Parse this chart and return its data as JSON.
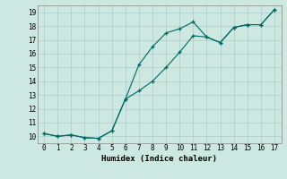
{
  "xlabel": "Humidex (Indice chaleur)",
  "ylabel": "",
  "background_color": "#cce8e0",
  "grid_color": "#aacccc",
  "line_color": "#006666",
  "xlim": [
    -0.5,
    17.5
  ],
  "ylim": [
    9.5,
    19.5
  ],
  "xticks": [
    0,
    1,
    2,
    3,
    4,
    5,
    6,
    7,
    8,
    9,
    10,
    11,
    12,
    13,
    14,
    15,
    16,
    17
  ],
  "yticks": [
    10,
    11,
    12,
    13,
    14,
    15,
    16,
    17,
    18,
    19
  ],
  "line1_x": [
    0,
    1,
    2,
    3,
    4,
    5,
    6,
    7,
    8,
    9,
    10,
    11,
    12,
    13,
    14,
    15,
    16,
    17
  ],
  "line1_y": [
    10.2,
    10.0,
    10.1,
    9.9,
    9.85,
    10.4,
    12.7,
    15.2,
    16.5,
    17.5,
    17.8,
    18.3,
    17.2,
    16.8,
    17.9,
    18.1,
    18.1,
    19.2
  ],
  "line2_x": [
    0,
    1,
    2,
    3,
    4,
    5,
    6,
    7,
    8,
    9,
    10,
    11,
    12,
    13,
    14,
    15,
    16,
    17
  ],
  "line2_y": [
    10.2,
    10.0,
    10.1,
    9.9,
    9.85,
    10.4,
    12.7,
    13.3,
    14.0,
    15.0,
    16.1,
    17.3,
    17.2,
    16.8,
    17.9,
    18.1,
    18.1,
    19.2
  ]
}
